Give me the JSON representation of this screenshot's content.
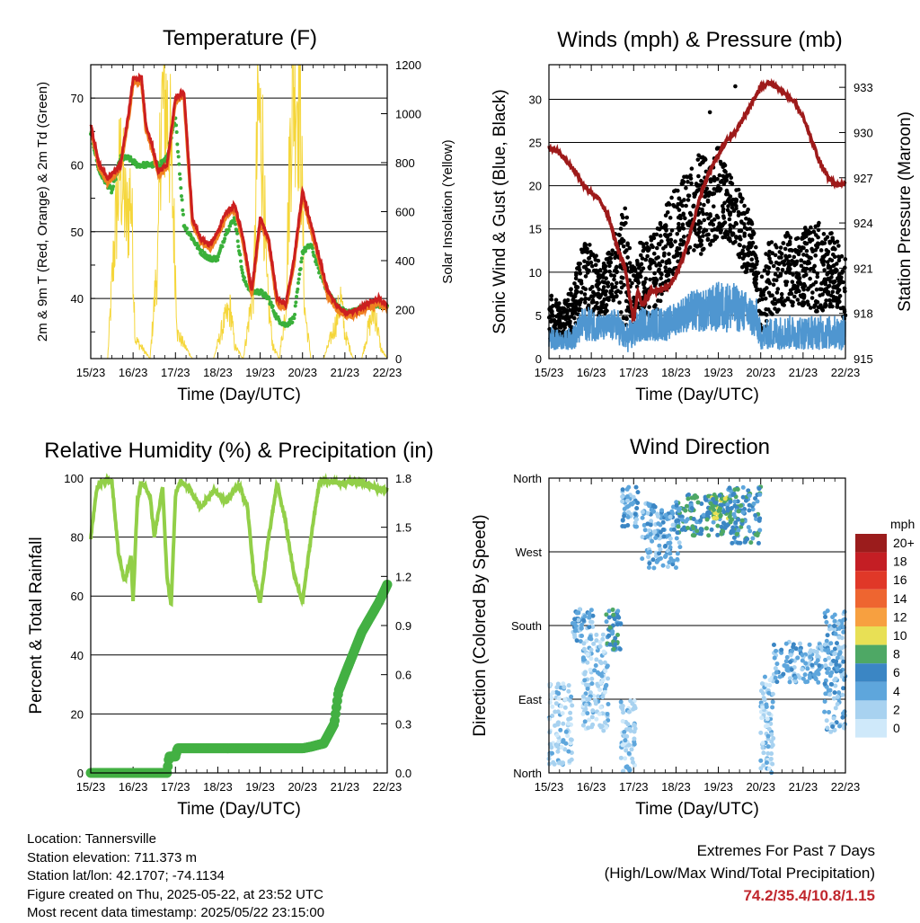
{
  "time_ticks": [
    "15/23",
    "16/23",
    "17/23",
    "18/23",
    "19/23",
    "20/23",
    "21/23",
    "22/23"
  ],
  "xlabel": "Time (Day/UTC)",
  "colors": {
    "temp2m": "#cc1f1f",
    "temp9m": "#f08020",
    "dewpoint": "#3ab03a",
    "solar": "#f5d63a",
    "wind": "#4f96d0",
    "gust": "#000000",
    "pressure": "#9e1a1a",
    "rh": "#92cf48",
    "precip": "#43b043"
  },
  "info": {
    "location": "Location: Tannersville",
    "elevation": "Station elevation: 711.373 m",
    "latlon": "Station lat/lon: 42.1707; -74.1134",
    "created": "Figure created on Thu, 2025-05-22, at 23:52 UTC",
    "recent": "Most recent data timestamp: 2025/05/22 23:15:00"
  },
  "extremes": {
    "title": "Extremes For Past 7 Days",
    "subtitle": "(High/Low/Max Wind/Total Precipitation)",
    "values": "74.2/35.4/10.8/1.15"
  },
  "chart_data": [
    {
      "type": "line",
      "title": "Temperature (F)",
      "xlabel": "Time (Day/UTC)",
      "ylabel": "2m & 9m T (Red, Orange) & 2m Td (Green)",
      "ylabel_right": "Solar Insolation (Yellow)",
      "ylim": [
        31,
        75
      ],
      "yticks": [
        40,
        50,
        60,
        70
      ],
      "ylim_right": [
        0,
        1200
      ],
      "yticks_right": [
        0,
        200,
        400,
        600,
        800,
        1000,
        1200
      ],
      "series": [
        {
          "key": "temp",
          "color": "#cc1f1f",
          "x": [
            0,
            0.2,
            0.4,
            0.7,
            0.9,
            1.0,
            1.2,
            1.3,
            1.45,
            1.6,
            1.8,
            2.0,
            2.2,
            2.4,
            2.6,
            2.8,
            3.0,
            3.2,
            3.4,
            3.6,
            3.8,
            4.0,
            4.2,
            4.4,
            4.6,
            4.8,
            5.0,
            5.2,
            5.4,
            5.6,
            5.8,
            6.0,
            6.2,
            6.5,
            6.8,
            7.0
          ],
          "y": [
            66,
            60,
            58,
            60,
            68,
            73,
            73,
            66,
            63,
            59,
            60,
            70,
            71,
            52,
            49,
            48,
            50,
            53,
            54,
            49,
            41,
            52,
            49,
            40,
            39,
            46,
            56,
            51,
            46,
            41,
            39,
            38,
            38,
            39,
            40,
            39
          ]
        },
        {
          "key": "dewpoint",
          "color": "#3ab03a",
          "x": [
            0,
            0.2,
            0.5,
            0.7,
            0.9,
            1.1,
            1.4,
            1.6,
            1.8,
            2.0,
            2.2,
            2.4,
            2.6,
            2.8,
            3.0,
            3.2,
            3.4,
            3.6,
            3.8,
            4.0,
            4.2,
            4.4,
            4.6,
            4.8,
            5.0,
            5.2,
            5.4,
            5.6,
            5.8,
            6.0,
            6.2,
            6.5,
            6.8,
            7.0
          ],
          "y": [
            65,
            59,
            56,
            61,
            61,
            60,
            60,
            60,
            61,
            67,
            51,
            49,
            47,
            46,
            46,
            50,
            52,
            43,
            41,
            41,
            40,
            37,
            36,
            37,
            47,
            48,
            44,
            41,
            39,
            38,
            38,
            39,
            39,
            39
          ]
        },
        {
          "key": "solar",
          "color": "#f5d63a",
          "axis": "right",
          "x": [
            0,
            0.4,
            0.55,
            0.7,
            0.85,
            0.95,
            1.05,
            1.4,
            1.6,
            1.65,
            1.75,
            1.85,
            1.95,
            2.05,
            2.4,
            2.9,
            3.15,
            3.3,
            3.4,
            3.6,
            3.85,
            3.95,
            4.05,
            4.15,
            4.3,
            4.45,
            4.6,
            4.75,
            4.85,
            4.95,
            5.05,
            5.2,
            5.5,
            5.8,
            5.9,
            6.0,
            6.2,
            6.4,
            6.55,
            6.7,
            6.85,
            7.0
          ],
          "y": [
            0,
            0,
            450,
            800,
            550,
            700,
            80,
            0,
            450,
            1000,
            1050,
            950,
            600,
            100,
            0,
            0,
            150,
            200,
            50,
            0,
            300,
            1000,
            900,
            300,
            50,
            0,
            200,
            1100,
            1150,
            1000,
            200,
            0,
            0,
            150,
            250,
            100,
            0,
            0,
            120,
            200,
            40,
            0
          ]
        }
      ]
    },
    {
      "type": "scatter",
      "title": "Winds (mph) & Pressure (mb)",
      "xlabel": "Time (Day/UTC)",
      "ylabel": "Sonic Wind & Gust (Blue, Black)",
      "ylabel_right": "Station Pressure (Maroon)",
      "ylim": [
        0,
        34
      ],
      "yticks": [
        0,
        5,
        10,
        15,
        20,
        25,
        30
      ],
      "ylim_right": [
        915,
        934.5
      ],
      "yticks_right": [
        915,
        918,
        921,
        924,
        927,
        930,
        933
      ],
      "series": [
        {
          "key": "gust_envelope",
          "color": "#000000",
          "x": [
            0,
            0.3,
            0.6,
            0.8,
            1.0,
            1.3,
            1.6,
            1.8,
            2.0,
            2.2,
            2.4,
            2.6,
            2.8,
            3.0,
            3.3,
            3.6,
            3.8,
            4.0,
            4.2,
            4.4,
            4.6,
            4.8,
            5.0,
            5.2,
            5.5,
            5.8,
            6.0,
            6.3,
            6.6,
            6.8,
            7.0
          ],
          "y_low": [
            2,
            2,
            3,
            6,
            5,
            5,
            7,
            2,
            3,
            6,
            4,
            6,
            8,
            10,
            12,
            12,
            13,
            14,
            14,
            13,
            10,
            10,
            3,
            4,
            6,
            6,
            6,
            5,
            6,
            6,
            4
          ],
          "y_high": [
            8,
            6,
            9,
            14,
            13,
            11,
            15,
            18,
            10,
            15,
            14,
            16,
            18,
            20,
            22,
            24,
            22,
            25,
            22,
            20,
            19,
            16,
            9,
            14,
            15,
            14,
            15,
            16,
            15,
            14,
            12
          ]
        },
        {
          "key": "wind_envelope",
          "color": "#4f96d0",
          "x": [
            0,
            0.3,
            0.6,
            0.8,
            1.0,
            1.3,
            1.6,
            1.8,
            2.0,
            2.2,
            2.5,
            2.8,
            3.1,
            3.4,
            3.7,
            4.0,
            4.3,
            4.6,
            4.9,
            5.0,
            5.3,
            5.6,
            5.9,
            6.2,
            6.5,
            6.8,
            7.0
          ],
          "y_low": [
            1,
            1,
            1,
            2,
            2,
            2,
            2,
            0.5,
            1,
            2,
            2,
            2,
            3,
            3,
            3,
            3,
            3,
            3,
            2,
            1,
            1,
            1,
            1,
            1,
            1,
            1,
            1
          ],
          "y_high": [
            4,
            3,
            4,
            6,
            6,
            5,
            6,
            4,
            5,
            6,
            6,
            6,
            7,
            8,
            8,
            9,
            9,
            8,
            7,
            4,
            5,
            5,
            5,
            5,
            5,
            5,
            5
          ]
        },
        {
          "key": "pressure",
          "color": "#9e1a1a",
          "axis": "right",
          "x": [
            0,
            0.2,
            0.4,
            0.6,
            0.8,
            1.0,
            1.2,
            1.4,
            1.6,
            1.8,
            1.9,
            2.0,
            2.1,
            2.2,
            2.4,
            2.6,
            2.8,
            3.0,
            3.2,
            3.4,
            3.6,
            3.8,
            4.0,
            4.2,
            4.4,
            4.6,
            4.8,
            5.0,
            5.2,
            5.4,
            5.6,
            5.8,
            6.0,
            6.2,
            6.4,
            6.6,
            6.8,
            7.0
          ],
          "y": [
            929,
            928.8,
            928.2,
            927.5,
            926.5,
            926,
            925.5,
            924.5,
            922.5,
            921,
            919.2,
            917.5,
            919.5,
            918.5,
            919.5,
            919.5,
            919.8,
            920.5,
            922,
            924,
            926,
            927.5,
            928.5,
            929.5,
            930,
            931,
            932,
            933,
            933.3,
            933,
            932.5,
            932,
            931,
            929.5,
            928,
            927,
            926.5,
            926.6
          ]
        }
      ],
      "outliers": [
        [
          3.8,
          28.5
        ],
        [
          4.4,
          31.5
        ]
      ]
    },
    {
      "type": "line",
      "title": "Relative Humidity (%) & Precipitation (in)",
      "xlabel": "Time (Day/UTC)",
      "ylabel": "Percent & Total Rainfall",
      "ylim": [
        0,
        100
      ],
      "yticks": [
        0,
        20,
        40,
        60,
        80,
        100
      ],
      "ylim_right": [
        0,
        1.8
      ],
      "yticks_right": [
        "0.0",
        "0.3",
        "0.6",
        "0.9",
        "1.2",
        "1.5",
        "1.8"
      ],
      "series": [
        {
          "key": "rh",
          "color": "#92cf48",
          "x": [
            0,
            0.15,
            0.3,
            0.5,
            0.65,
            0.8,
            0.95,
            1.0,
            1.1,
            1.2,
            1.4,
            1.5,
            1.7,
            1.8,
            1.9,
            2.0,
            2.1,
            2.3,
            2.6,
            2.9,
            3.2,
            3.5,
            3.7,
            3.85,
            4.0,
            4.2,
            4.4,
            4.6,
            4.8,
            5.0,
            5.2,
            5.4,
            5.6,
            5.9,
            6.2,
            6.5,
            6.8,
            7.0
          ],
          "y": [
            80,
            97,
            99,
            99,
            75,
            65,
            73,
            58,
            92,
            99,
            94,
            80,
            97,
            66,
            57,
            94,
            99,
            97,
            90,
            96,
            92,
            98,
            90,
            67,
            58,
            80,
            98,
            85,
            67,
            58,
            80,
            99,
            99,
            98,
            99,
            98,
            96,
            96
          ]
        },
        {
          "key": "precip",
          "color": "#43b043",
          "axis": "right",
          "x": [
            0,
            1.8,
            1.85,
            2.0,
            2.05,
            2.4,
            3.0,
            4.0,
            5.0,
            5.2,
            5.5,
            5.75,
            5.85,
            6.0,
            6.2,
            6.4,
            6.6,
            6.8,
            7.0
          ],
          "y": [
            0,
            0,
            0.1,
            0.1,
            0.15,
            0.15,
            0.15,
            0.15,
            0.15,
            0.16,
            0.18,
            0.3,
            0.5,
            0.6,
            0.73,
            0.86,
            0.95,
            1.04,
            1.15
          ]
        }
      ]
    },
    {
      "type": "scatter",
      "title": "Wind Direction",
      "xlabel": "Time (Day/UTC)",
      "ylabel": "Direction (Colored By Speed)",
      "ylim": [
        0,
        360
      ],
      "yticks": [
        "North",
        "East",
        "South",
        "West",
        "North"
      ],
      "ytick_values": [
        0,
        90,
        180,
        270,
        360
      ],
      "legend_title": "mph",
      "legend_labels": [
        "20+",
        "18",
        "16",
        "14",
        "12",
        "10",
        "8",
        "6",
        "4",
        "2",
        "0"
      ],
      "legend_colors": [
        "#9b1c1c",
        "#c41e24",
        "#e03828",
        "#ee6530",
        "#f7a040",
        "#e8e055",
        "#4ea865",
        "#3b86c4",
        "#5ea6dc",
        "#a8d2f0",
        "#cfe9fa"
      ],
      "clusters": [
        {
          "x": [
            0,
            0.55
          ],
          "y": [
            10,
            110
          ],
          "speed": 2
        },
        {
          "x": [
            0.55,
            1.05
          ],
          "y": [
            160,
            200
          ],
          "speed": 4
        },
        {
          "x": [
            0.8,
            1.4
          ],
          "y": [
            50,
            170
          ],
          "speed": 2
        },
        {
          "x": [
            1.35,
            1.7
          ],
          "y": [
            150,
            200
          ],
          "speed": 6
        },
        {
          "x": [
            1.7,
            2.05
          ],
          "y": [
            0,
            90
          ],
          "speed": 2
        },
        {
          "x": [
            1.7,
            2.1
          ],
          "y": [
            300,
            350
          ],
          "speed": 4
        },
        {
          "x": [
            2.2,
            3.1
          ],
          "y": [
            250,
            330
          ],
          "speed": 4
        },
        {
          "x": [
            3.0,
            4.2
          ],
          "y": [
            290,
            340
          ],
          "speed": 6
        },
        {
          "x": [
            3.8,
            4.3
          ],
          "y": [
            310,
            340
          ],
          "speed": 8
        },
        {
          "x": [
            4.2,
            5.0
          ],
          "y": [
            280,
            350
          ],
          "speed": 6
        },
        {
          "x": [
            5.0,
            5.3
          ],
          "y": [
            0,
            120
          ],
          "speed": 2
        },
        {
          "x": [
            5.3,
            6.5
          ],
          "y": [
            110,
            160
          ],
          "speed": 4
        },
        {
          "x": [
            6.5,
            7.0
          ],
          "y": [
            50,
            200
          ],
          "speed": 4
        }
      ]
    }
  ]
}
